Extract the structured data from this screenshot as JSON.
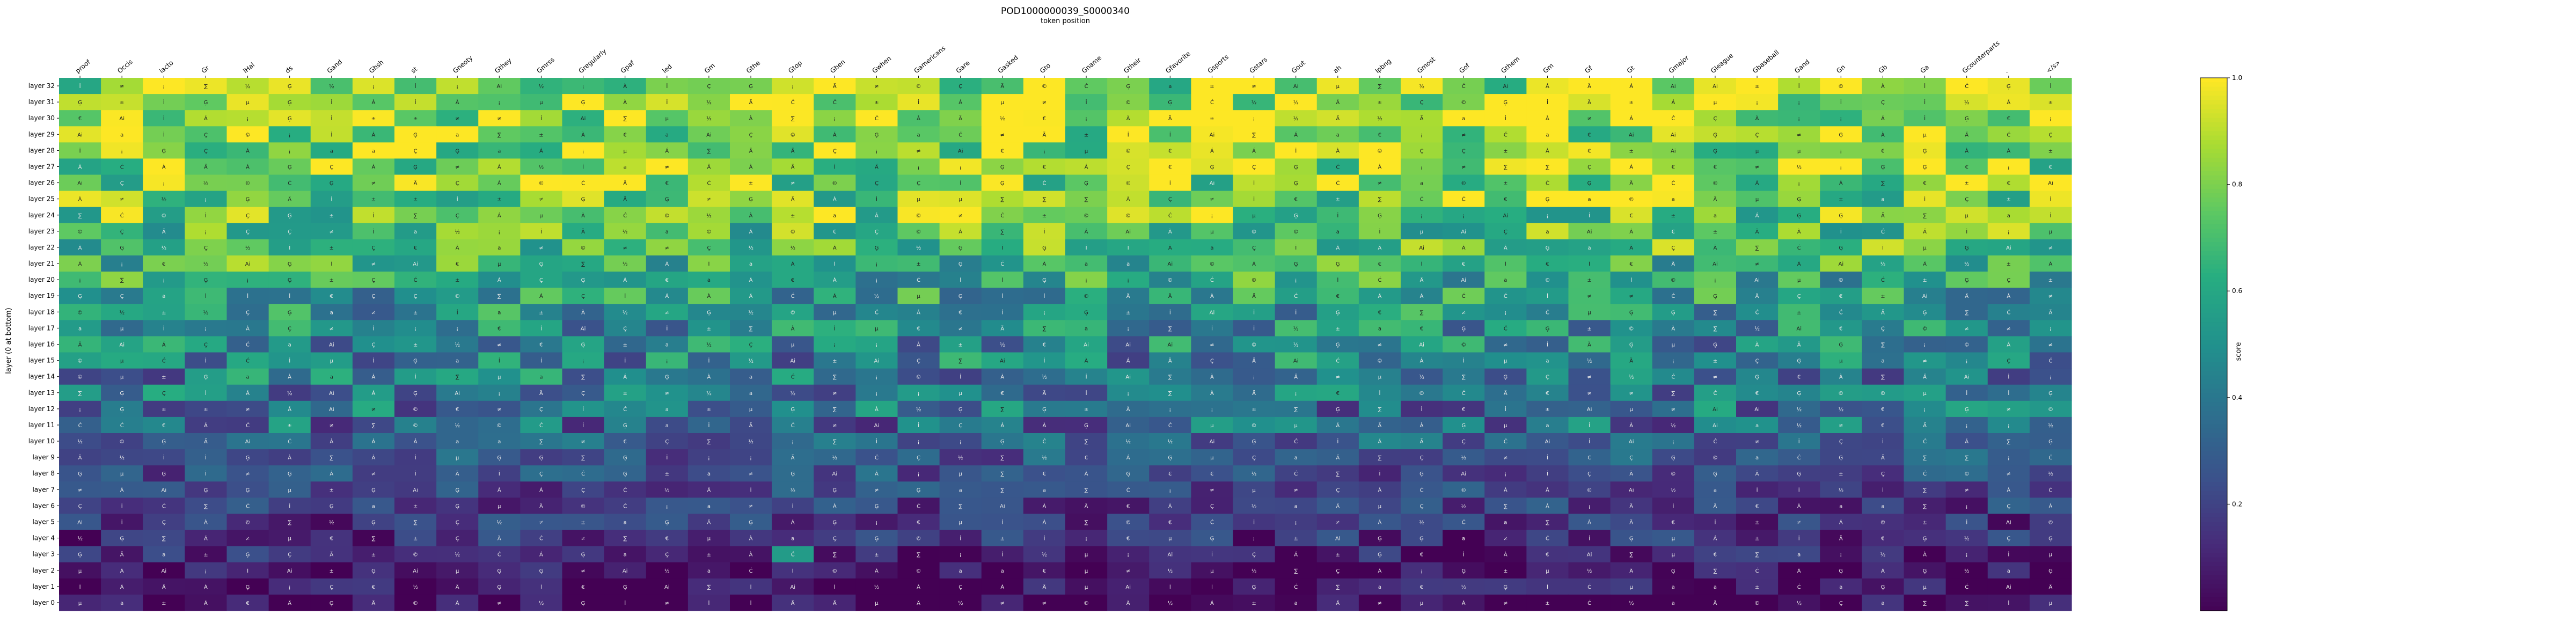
{
  "chart_data": {
    "type": "heatmap",
    "title": "POD1000000039_S0000340",
    "subtitle": "token position",
    "ylabel": "layer (0 at bottom)",
    "colorbar_label": "score",
    "colorbar_ticks": [
      "0.2",
      "0.4",
      "0.6",
      "0.8",
      "1.0"
    ],
    "colorbar_range": [
      0.0,
      1.0
    ],
    "colormap": "viridis",
    "x_tokens": [
      "proof",
      "Occis",
      "iacto",
      "Gr",
      "iHal",
      "ds",
      "Gand",
      "Gbsh",
      "st",
      "Gneoty",
      "Gthey",
      "Gmrss",
      "Gregularly",
      "Gpaf",
      "led",
      "Gm",
      "Gthe",
      "Gtop",
      "Gben",
      "Gwhen",
      "Gamericans",
      "Gare",
      "Gasked",
      "Gto",
      "Gname",
      "Gtheir",
      "Gfavorite",
      "Gsports",
      "Gstars",
      "Gout",
      "ah",
      "Ipbng",
      "Gmost",
      "Gof",
      "Gthem",
      "Gm",
      "Gf",
      "Gt",
      "Gmajor",
      "Gleague",
      "Gbaseball",
      "Gand",
      "Gn",
      "Gb",
      "Ga",
      "Gcounterparts",
      ".",
      "</s>"
    ],
    "y_layers": [
      "layer 32",
      "layer 31",
      "layer 30",
      "layer 29",
      "layer 28",
      "layer 27",
      "layer 26",
      "layer 25",
      "layer 24",
      "layer 23",
      "layer 22",
      "layer 21",
      "layer 20",
      "layer 19",
      "layer 18",
      "layer 17",
      "layer 16",
      "layer 15",
      "layer 14",
      "layer 13",
      "layer 12",
      "layer 11",
      "layer 10",
      "layer 9",
      "layer 8",
      "layer 7",
      "layer 6",
      "layer 5",
      "layer 4",
      "layer 3",
      "layer 2",
      "layer 1",
      "layer 0"
    ],
    "cell_glyphs": [
      "a",
      "Ai",
      "İ",
      "À",
      "Á",
      "Ä",
      "İ",
      "Ç",
      "€",
      "Ģ",
      "Ć",
      "Ģ",
      "≠",
      "∑",
      "½",
      "¡",
      "©",
      "±",
      "µ"
    ],
    "row_base_scores": [
      0.85,
      0.9,
      0.88,
      0.86,
      0.84,
      0.82,
      0.8,
      0.78,
      0.76,
      0.72,
      0.7,
      0.66,
      0.6,
      0.56,
      0.52,
      0.48,
      0.46,
      0.44,
      0.42,
      0.4,
      0.38,
      0.36,
      0.32,
      0.28,
      0.25,
      0.22,
      0.18,
      0.16,
      0.14,
      0.1,
      0.06,
      0.04,
      0.02
    ],
    "highlights": [
      {
        "row": "layer 3",
        "col": "Gtop",
        "value": 0.55
      }
    ]
  }
}
